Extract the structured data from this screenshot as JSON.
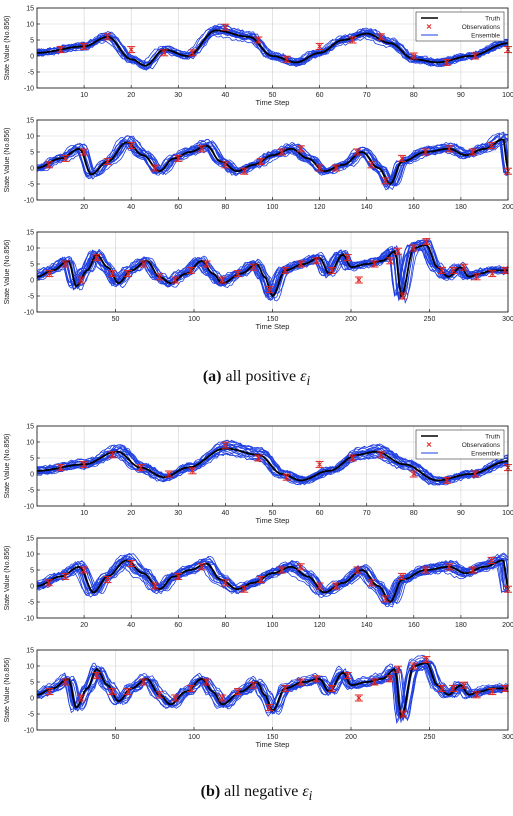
{
  "colors": {
    "truth": "#000000",
    "observations": "#e0211c",
    "ensemble": "#1f3fe0",
    "grid": "#d2d2d2"
  },
  "captions": [
    {
      "label": "(a)",
      "text": "all positive",
      "symbol": "ε",
      "sub": "i"
    },
    {
      "label": "(b)",
      "text": "all negative",
      "symbol": "ε",
      "sub": "i"
    }
  ],
  "chart_data": [
    {
      "id": "a1",
      "type": "line",
      "xlabel": "Time Step",
      "ylabel": "State Value (No.856)",
      "xlim": [
        0,
        100
      ],
      "ylim": [
        -10,
        15
      ],
      "xticks": [
        10,
        20,
        30,
        40,
        50,
        60,
        70,
        80,
        90,
        100
      ],
      "yticks": [
        -10,
        -5,
        0,
        5,
        10,
        15
      ],
      "grid": true,
      "legend": "top-right",
      "series": [
        {
          "name": "Truth"
        },
        {
          "name": "Observations"
        },
        {
          "name": "Ensemble"
        }
      ],
      "truth_points": [
        [
          0,
          1
        ],
        [
          10,
          3
        ],
        [
          15,
          6
        ],
        [
          20,
          -1
        ],
        [
          23,
          -3
        ],
        [
          27,
          2
        ],
        [
          32,
          0
        ],
        [
          38,
          8
        ],
        [
          45,
          6
        ],
        [
          50,
          0
        ],
        [
          55,
          -2
        ],
        [
          60,
          1
        ],
        [
          65,
          5
        ],
        [
          70,
          7
        ],
        [
          75,
          4
        ],
        [
          80,
          -1
        ],
        [
          85,
          -2
        ],
        [
          92,
          0
        ],
        [
          100,
          4
        ]
      ],
      "observations": [
        [
          5,
          2
        ],
        [
          10,
          3
        ],
        [
          15,
          6
        ],
        [
          20,
          2
        ],
        [
          27,
          1
        ],
        [
          33,
          1
        ],
        [
          40,
          9
        ],
        [
          47,
          5
        ],
        [
          53,
          -1
        ],
        [
          60,
          3
        ],
        [
          67,
          5
        ],
        [
          73,
          6
        ],
        [
          80,
          0
        ],
        [
          87,
          -2
        ],
        [
          93,
          0
        ],
        [
          100,
          2
        ]
      ]
    },
    {
      "id": "a2",
      "type": "line",
      "xlabel": "",
      "ylabel": "State Value (No.856)",
      "xlim": [
        0,
        200
      ],
      "ylim": [
        -10,
        15
      ],
      "xticks": [
        20,
        40,
        60,
        80,
        100,
        120,
        140,
        160,
        180,
        200
      ],
      "yticks": [
        -10,
        -5,
        0,
        5,
        10,
        15
      ],
      "grid": true,
      "truth_points": [
        [
          0,
          0
        ],
        [
          10,
          3
        ],
        [
          18,
          6
        ],
        [
          23,
          -2
        ],
        [
          30,
          2
        ],
        [
          38,
          8
        ],
        [
          45,
          4
        ],
        [
          52,
          -1
        ],
        [
          58,
          3
        ],
        [
          65,
          5
        ],
        [
          72,
          7
        ],
        [
          78,
          2
        ],
        [
          85,
          -1
        ],
        [
          92,
          1
        ],
        [
          100,
          4
        ],
        [
          108,
          6
        ],
        [
          115,
          3
        ],
        [
          122,
          -1
        ],
        [
          130,
          1
        ],
        [
          138,
          5
        ],
        [
          145,
          0
        ],
        [
          150,
          -5
        ],
        [
          155,
          2
        ],
        [
          165,
          5
        ],
        [
          175,
          6
        ],
        [
          182,
          4
        ],
        [
          190,
          6
        ],
        [
          198,
          9
        ],
        [
          200,
          -1
        ]
      ],
      "observations": [
        [
          5,
          1
        ],
        [
          12,
          3
        ],
        [
          20,
          5
        ],
        [
          30,
          2
        ],
        [
          40,
          7
        ],
        [
          50,
          0
        ],
        [
          60,
          3
        ],
        [
          70,
          6
        ],
        [
          80,
          1
        ],
        [
          88,
          -1
        ],
        [
          95,
          2
        ],
        [
          104,
          5
        ],
        [
          112,
          6
        ],
        [
          120,
          0
        ],
        [
          127,
          0
        ],
        [
          136,
          5
        ],
        [
          142,
          1
        ],
        [
          148,
          -4
        ],
        [
          155,
          3
        ],
        [
          165,
          5
        ],
        [
          175,
          6
        ],
        [
          185,
          5
        ],
        [
          193,
          7
        ],
        [
          200,
          -1
        ]
      ]
    },
    {
      "id": "a3",
      "type": "line",
      "xlabel": "Time Step",
      "ylabel": "State Value (No.856)",
      "xlim": [
        0,
        300
      ],
      "ylim": [
        -10,
        15
      ],
      "xticks": [
        50,
        100,
        150,
        200,
        250,
        300
      ],
      "yticks": [
        -10,
        -5,
        0,
        5,
        10,
        15
      ],
      "grid": true,
      "truth_points": [
        [
          0,
          1
        ],
        [
          10,
          3
        ],
        [
          20,
          6
        ],
        [
          25,
          -2
        ],
        [
          32,
          3
        ],
        [
          38,
          8
        ],
        [
          45,
          4
        ],
        [
          52,
          -1
        ],
        [
          60,
          3
        ],
        [
          70,
          6
        ],
        [
          78,
          1
        ],
        [
          85,
          -1
        ],
        [
          95,
          2
        ],
        [
          105,
          6
        ],
        [
          112,
          2
        ],
        [
          118,
          -1
        ],
        [
          130,
          2
        ],
        [
          140,
          5
        ],
        [
          145,
          1
        ],
        [
          150,
          -5
        ],
        [
          158,
          3
        ],
        [
          170,
          5
        ],
        [
          180,
          7
        ],
        [
          186,
          2
        ],
        [
          195,
          8
        ],
        [
          200,
          4
        ],
        [
          210,
          5
        ],
        [
          220,
          6
        ],
        [
          228,
          9
        ],
        [
          232,
          -5
        ],
        [
          240,
          10
        ],
        [
          248,
          11
        ],
        [
          255,
          4
        ],
        [
          262,
          1
        ],
        [
          270,
          4
        ],
        [
          275,
          1
        ],
        [
          282,
          2
        ],
        [
          290,
          3
        ],
        [
          300,
          3
        ]
      ],
      "observations": [
        [
          8,
          2
        ],
        [
          18,
          5
        ],
        [
          28,
          0
        ],
        [
          38,
          7
        ],
        [
          48,
          2
        ],
        [
          58,
          2
        ],
        [
          68,
          5
        ],
        [
          78,
          1
        ],
        [
          88,
          0
        ],
        [
          98,
          3
        ],
        [
          108,
          5
        ],
        [
          118,
          0
        ],
        [
          128,
          2
        ],
        [
          138,
          4
        ],
        [
          148,
          -3
        ],
        [
          158,
          3
        ],
        [
          168,
          5
        ],
        [
          178,
          6
        ],
        [
          188,
          3
        ],
        [
          198,
          7
        ],
        [
          205,
          0
        ],
        [
          215,
          5
        ],
        [
          225,
          6
        ],
        [
          230,
          9
        ],
        [
          233,
          -5
        ],
        [
          240,
          10
        ],
        [
          248,
          12
        ],
        [
          258,
          3
        ],
        [
          265,
          3
        ],
        [
          272,
          4
        ],
        [
          280,
          1
        ],
        [
          290,
          2
        ],
        [
          298,
          3
        ]
      ]
    },
    {
      "id": "b1",
      "type": "line",
      "xlabel": "Time Step",
      "ylabel": "State Value (No.856)",
      "xlim": [
        0,
        100
      ],
      "ylim": [
        -10,
        15
      ],
      "xticks": [
        10,
        20,
        30,
        40,
        50,
        60,
        70,
        80,
        90,
        100
      ],
      "yticks": [
        -10,
        -5,
        0,
        5,
        10,
        15
      ],
      "grid": true,
      "legend": "top-right",
      "series": [
        {
          "name": "Truth"
        },
        {
          "name": "Observations"
        },
        {
          "name": "Ensemble"
        }
      ],
      "truth_points": [
        [
          0,
          1
        ],
        [
          10,
          3
        ],
        [
          17,
          7
        ],
        [
          22,
          2
        ],
        [
          27,
          -1
        ],
        [
          32,
          2
        ],
        [
          40,
          8
        ],
        [
          47,
          6
        ],
        [
          52,
          0
        ],
        [
          56,
          -2
        ],
        [
          62,
          1
        ],
        [
          68,
          6
        ],
        [
          72,
          7
        ],
        [
          78,
          3
        ],
        [
          85,
          -2
        ],
        [
          92,
          0
        ],
        [
          100,
          4
        ]
      ],
      "observations": [
        [
          5,
          2
        ],
        [
          10,
          3
        ],
        [
          16,
          6
        ],
        [
          22,
          2
        ],
        [
          28,
          0
        ],
        [
          33,
          1
        ],
        [
          40,
          9
        ],
        [
          47,
          5
        ],
        [
          53,
          -1
        ],
        [
          60,
          3
        ],
        [
          67,
          5
        ],
        [
          73,
          6
        ],
        [
          80,
          0
        ],
        [
          87,
          -2
        ],
        [
          93,
          0
        ],
        [
          100,
          2
        ]
      ]
    },
    {
      "id": "b2",
      "type": "line",
      "xlabel": "",
      "ylabel": "State Value (No.856)",
      "xlim": [
        0,
        200
      ],
      "ylim": [
        -10,
        15
      ],
      "xticks": [
        20,
        40,
        60,
        80,
        100,
        120,
        140,
        160,
        180,
        200
      ],
      "yticks": [
        -10,
        -5,
        0,
        5,
        10,
        15
      ],
      "grid": true,
      "truth_points": [
        [
          0,
          0
        ],
        [
          10,
          3
        ],
        [
          18,
          6
        ],
        [
          24,
          -2
        ],
        [
          30,
          3
        ],
        [
          38,
          8
        ],
        [
          45,
          4
        ],
        [
          52,
          -1
        ],
        [
          58,
          3
        ],
        [
          65,
          5
        ],
        [
          72,
          7
        ],
        [
          78,
          2
        ],
        [
          85,
          -1
        ],
        [
          92,
          1
        ],
        [
          100,
          4
        ],
        [
          108,
          6
        ],
        [
          115,
          3
        ],
        [
          122,
          -2
        ],
        [
          130,
          1
        ],
        [
          138,
          5
        ],
        [
          145,
          0
        ],
        [
          150,
          -5
        ],
        [
          155,
          2
        ],
        [
          165,
          5
        ],
        [
          175,
          6
        ],
        [
          182,
          4
        ],
        [
          190,
          6
        ],
        [
          198,
          8
        ],
        [
          200,
          -1
        ]
      ],
      "observations": [
        [
          5,
          1
        ],
        [
          12,
          3
        ],
        [
          20,
          5
        ],
        [
          30,
          2
        ],
        [
          40,
          7
        ],
        [
          50,
          0
        ],
        [
          60,
          3
        ],
        [
          70,
          6
        ],
        [
          80,
          1
        ],
        [
          88,
          -1
        ],
        [
          95,
          2
        ],
        [
          104,
          5
        ],
        [
          112,
          6
        ],
        [
          120,
          0
        ],
        [
          127,
          0
        ],
        [
          136,
          5
        ],
        [
          142,
          1
        ],
        [
          148,
          -4
        ],
        [
          155,
          3
        ],
        [
          165,
          5
        ],
        [
          175,
          6
        ],
        [
          185,
          5
        ],
        [
          193,
          8
        ],
        [
          200,
          -1
        ]
      ]
    },
    {
      "id": "b3",
      "type": "line",
      "xlabel": "Time Step",
      "ylabel": "State Value (No.856)",
      "xlim": [
        0,
        300
      ],
      "ylim": [
        -10,
        15
      ],
      "xticks": [
        50,
        100,
        150,
        200,
        250,
        300
      ],
      "yticks": [
        -10,
        -5,
        0,
        5,
        10,
        15
      ],
      "grid": true,
      "truth_points": [
        [
          0,
          1
        ],
        [
          10,
          3
        ],
        [
          20,
          6
        ],
        [
          25,
          -3
        ],
        [
          32,
          3
        ],
        [
          38,
          9
        ],
        [
          45,
          4
        ],
        [
          52,
          -1
        ],
        [
          60,
          3
        ],
        [
          70,
          6
        ],
        [
          78,
          1
        ],
        [
          85,
          -2
        ],
        [
          95,
          2
        ],
        [
          105,
          6
        ],
        [
          112,
          2
        ],
        [
          118,
          -2
        ],
        [
          130,
          2
        ],
        [
          140,
          5
        ],
        [
          145,
          1
        ],
        [
          150,
          -4
        ],
        [
          158,
          3
        ],
        [
          170,
          5
        ],
        [
          180,
          6
        ],
        [
          186,
          2
        ],
        [
          195,
          8
        ],
        [
          200,
          4
        ],
        [
          210,
          5
        ],
        [
          220,
          6
        ],
        [
          228,
          9
        ],
        [
          232,
          -6
        ],
        [
          240,
          10
        ],
        [
          248,
          11
        ],
        [
          255,
          4
        ],
        [
          262,
          1
        ],
        [
          270,
          4
        ],
        [
          275,
          1
        ],
        [
          282,
          2
        ],
        [
          290,
          3
        ],
        [
          300,
          3
        ]
      ],
      "observations": [
        [
          8,
          2
        ],
        [
          18,
          5
        ],
        [
          28,
          0
        ],
        [
          38,
          7
        ],
        [
          48,
          2
        ],
        [
          58,
          2
        ],
        [
          68,
          5
        ],
        [
          78,
          1
        ],
        [
          88,
          0
        ],
        [
          98,
          3
        ],
        [
          108,
          5
        ],
        [
          118,
          0
        ],
        [
          128,
          2
        ],
        [
          138,
          4
        ],
        [
          148,
          -3
        ],
        [
          158,
          3
        ],
        [
          168,
          5
        ],
        [
          178,
          6
        ],
        [
          188,
          3
        ],
        [
          198,
          7
        ],
        [
          205,
          0
        ],
        [
          215,
          5
        ],
        [
          225,
          6
        ],
        [
          230,
          9
        ],
        [
          233,
          -5
        ],
        [
          240,
          10
        ],
        [
          248,
          12
        ],
        [
          258,
          3
        ],
        [
          265,
          3
        ],
        [
          272,
          4
        ],
        [
          280,
          1
        ],
        [
          290,
          2
        ],
        [
          298,
          3
        ]
      ]
    }
  ]
}
